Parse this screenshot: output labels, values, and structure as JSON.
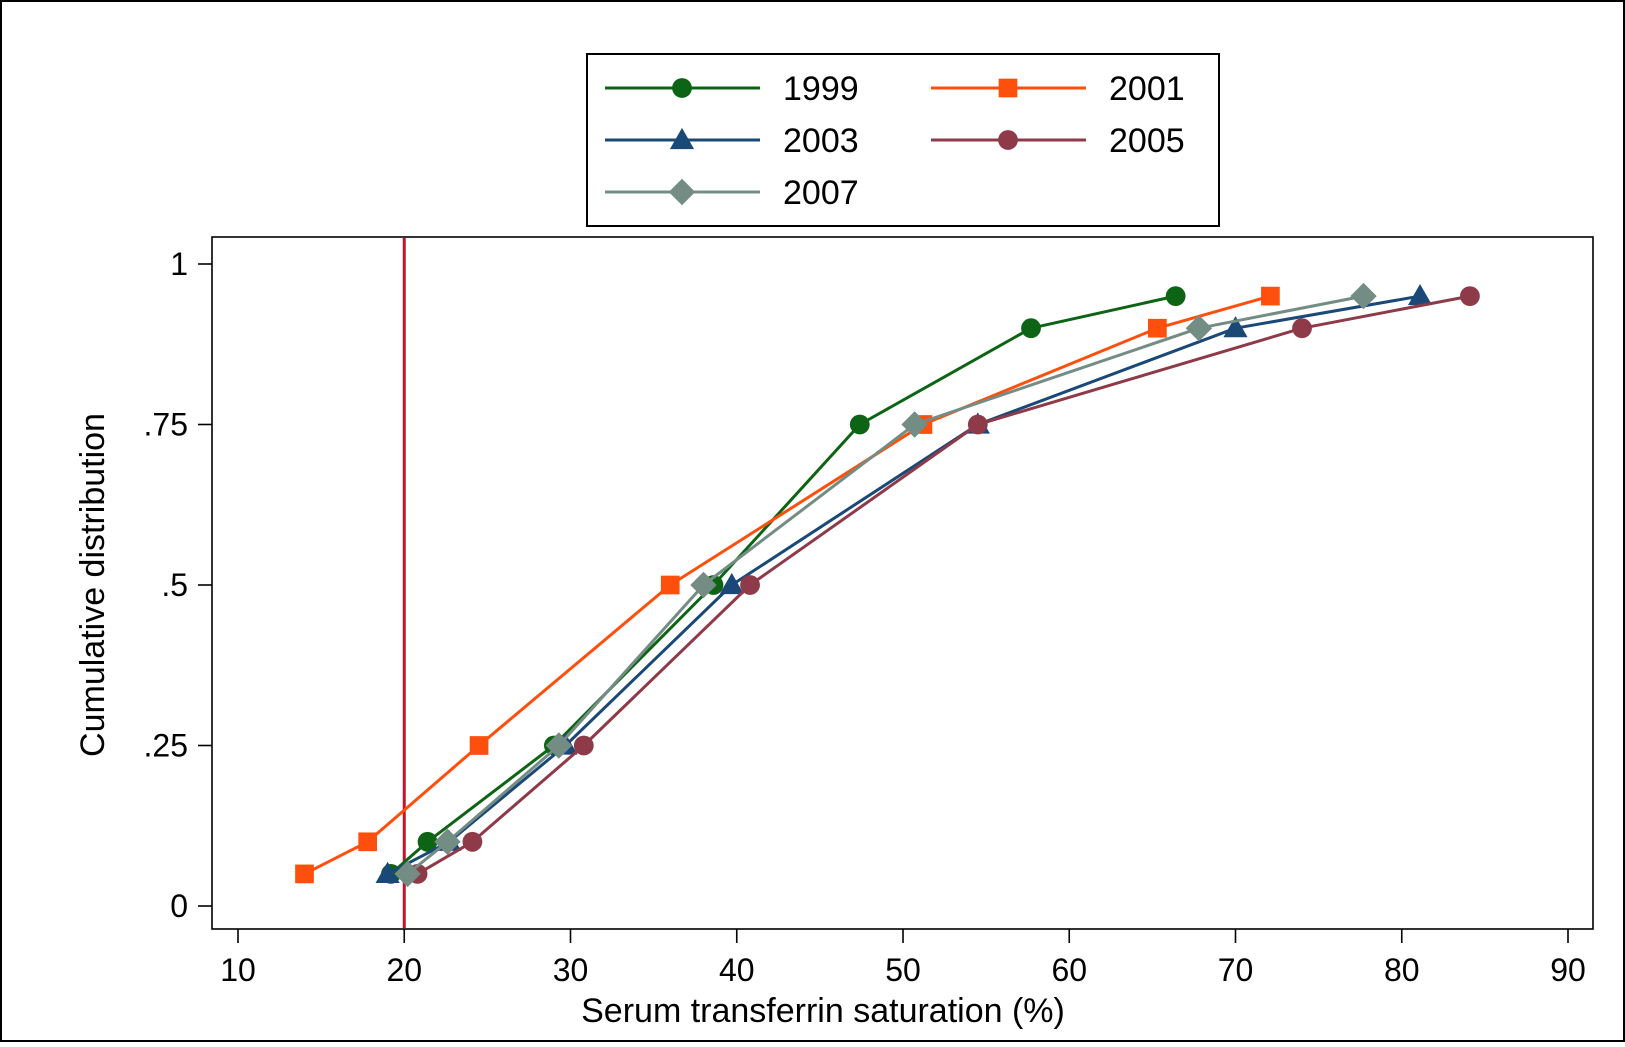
{
  "chart_data": {
    "type": "line",
    "xlabel": "Serum transferrin saturation (%)",
    "ylabel": "Cumulative distribution",
    "xlim": [
      10,
      90
    ],
    "ylim": [
      0,
      1
    ],
    "x_ticks": [
      10,
      20,
      30,
      40,
      50,
      60,
      70,
      80,
      90
    ],
    "y_ticks": [
      0,
      0.25,
      0.5,
      0.75,
      1
    ],
    "y_tick_labels": [
      "0",
      ".25",
      ".5",
      ".75",
      "1"
    ],
    "grid": false,
    "legend_position": "top-center",
    "reference_line": {
      "x": 20,
      "color": "#c0142c"
    },
    "y": [
      0.05,
      0.1,
      0.25,
      0.5,
      0.75,
      0.9,
      0.95
    ],
    "series": [
      {
        "name": "1999",
        "marker": "circle",
        "color": "#0d6414",
        "x": [
          19.2,
          21.4,
          29.0,
          38.6,
          47.4,
          57.7,
          66.4
        ]
      },
      {
        "name": "2001",
        "marker": "square",
        "color": "#ff4f0c",
        "x": [
          14.0,
          17.8,
          24.5,
          36.0,
          51.2,
          65.3,
          72.1
        ]
      },
      {
        "name": "2003",
        "marker": "triangle",
        "color": "#1a4978",
        "x": [
          19.0,
          22.7,
          29.7,
          39.7,
          54.5,
          70.0,
          81.1
        ]
      },
      {
        "name": "2005",
        "marker": "circle",
        "color": "#8f3a48",
        "x": [
          20.8,
          24.1,
          30.8,
          40.8,
          54.5,
          74.0,
          84.1
        ]
      },
      {
        "name": "2007",
        "marker": "diamond",
        "color": "#738c84",
        "x": [
          20.2,
          22.6,
          29.3,
          38.0,
          50.7,
          67.8,
          77.7
        ]
      }
    ]
  }
}
